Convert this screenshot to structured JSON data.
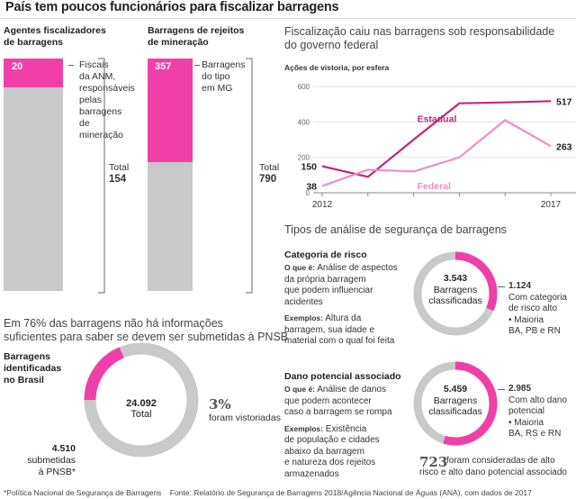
{
  "title": "País tem poucos funcionários para fiscalizar barragens",
  "left_bars": [
    {
      "heading": [
        "Agentes fiscalizadores",
        "de barragens"
      ],
      "highlight_value": 20,
      "highlight_label": [
        "Fiscais",
        "da ANM,",
        "responsáveis",
        "pelas",
        "barragens",
        "de",
        "mineração"
      ],
      "total_label": "Total",
      "total_value": 154
    },
    {
      "heading": [
        "Barragens de rejeitos",
        "de mineração"
      ],
      "highlight_value": 357,
      "highlight_label": [
        "Barragens",
        "do tipo",
        "em MG"
      ],
      "total_label": "Total",
      "total_value": 790
    }
  ],
  "lower_left": {
    "subtitle": [
      "Em 76% das barragens não há informações",
      "suficientes para saber se devem ser submetidas à PNSB"
    ],
    "label": [
      "Barragens",
      "identificadas",
      "no Brasil"
    ],
    "total_value": "24.092",
    "total_label": "Total",
    "sub_value": "4.510",
    "sub_label": [
      "submetidas",
      "à PNSB*"
    ],
    "pct_value": "3%",
    "pct_label": "foram vistoriadas"
  },
  "line_chart_title": [
    "Fiscalização caiu nas barragens sob responsabilidade",
    "do governo federal"
  ],
  "line_chart_subtitle": "Ações de vistoria, por esfera",
  "chart_data": {
    "type": "line",
    "x": [
      2012,
      2013,
      2014,
      2015,
      2016,
      2017
    ],
    "series": [
      {
        "name": "Estadual",
        "values": [
          150,
          90,
          300,
          505,
          510,
          517
        ],
        "color": "#c2267c"
      },
      {
        "name": "Federal",
        "values": [
          38,
          130,
          120,
          200,
          410,
          263
        ],
        "color": "#f28cc9"
      }
    ],
    "yticks": [
      0,
      200,
      400,
      600
    ],
    "ylim": [
      0,
      600
    ],
    "xtick_labels": [
      "2012",
      "2017"
    ],
    "start_labels": [
      "150",
      "38"
    ],
    "end_labels": [
      "517",
      "263"
    ]
  },
  "types_title": "Tipos de análise de segurança de barragens",
  "categoria": {
    "heading": "Categoria de risco",
    "oque_label": "O que é:",
    "oque_text": [
      "Análise de aspectos",
      "da própria barragem",
      "que podem influenciar",
      "acidentes"
    ],
    "ex_label": "Exemplos:",
    "ex_text": [
      "Altura da",
      "barragem, sua idade e",
      "material com o qual foi feita"
    ],
    "donut_value": "3.543",
    "donut_label": [
      "Barragens",
      "classificadas"
    ],
    "side_value": "1.124",
    "side_text": [
      "Com categoria",
      "de risco alto",
      "• Maioria",
      "BA, PB e RN"
    ]
  },
  "dano": {
    "heading": "Dano potencial associado",
    "oque_label": "O que é:",
    "oque_text": [
      "Análise de danos",
      "que podem acontecer",
      "caso a barragem se rompa"
    ],
    "ex_label": "Exemplos:",
    "ex_text": [
      "Existência",
      "de população e cidades",
      "abaixo da barragem",
      "e natureza dos rejeitos",
      "armazenados"
    ],
    "donut_value": "5.459",
    "donut_label": [
      "Barragens",
      "classificadas"
    ],
    "side_value": "2.985",
    "side_text": [
      "Com alto dano",
      "potencial",
      "• Maioria",
      "BA, RS e RN"
    ]
  },
  "bottom_note": {
    "value": "723",
    "text": [
      "foram consideradas de alto",
      "risco e alto dano potencial associado"
    ]
  },
  "footnote": "*Política Nacional de Segurança de Barragens    Fonte: Relatório de Segurança de Barragens 2018/Agência Nacional de Águas (ANA), com dados de 2017",
  "colors": {
    "pink": "#f03fa8",
    "gray": "#c9c9c9",
    "magenta": "#c2267c",
    "lightpink": "#f28cc9"
  }
}
